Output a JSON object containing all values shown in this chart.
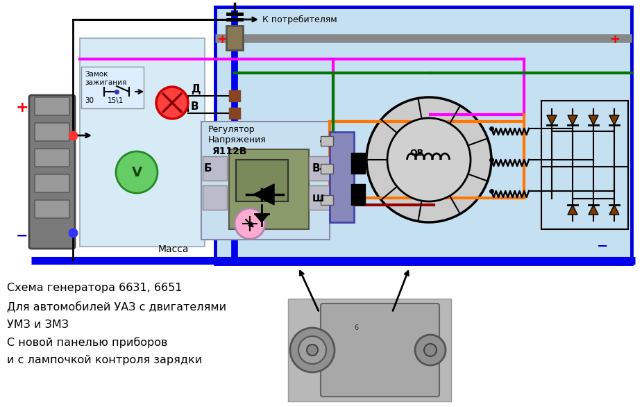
{
  "bg_color": "#ffffff",
  "diagram_bg": "#c5e0f0",
  "left_panel_bg": "#d0e8f5",
  "title_lines": [
    "Схема генератора 6631, 6651",
    "Для автомобилей УАЗ с двигателями",
    "УМЗ и ЗМЗ",
    "С новой панелью приборов",
    "и с лампочкой контроля зарядки"
  ],
  "plus_color": "#ff0000",
  "minus_color": "#0000cc",
  "wire_blue": "#0000ee",
  "wire_green": "#007700",
  "wire_pink": "#ff00ff",
  "wire_gray": "#888888",
  "wire_orange": "#ff7700",
  "wire_dark_red": "#990000",
  "wire_black": "#000000",
  "border_blue": "#0000dd",
  "reg_fill": "#8a9a6a",
  "reg_inner": "#7a8a5a",
  "brush_fill": "#8888bb",
  "diode_color": "#7a3a00"
}
